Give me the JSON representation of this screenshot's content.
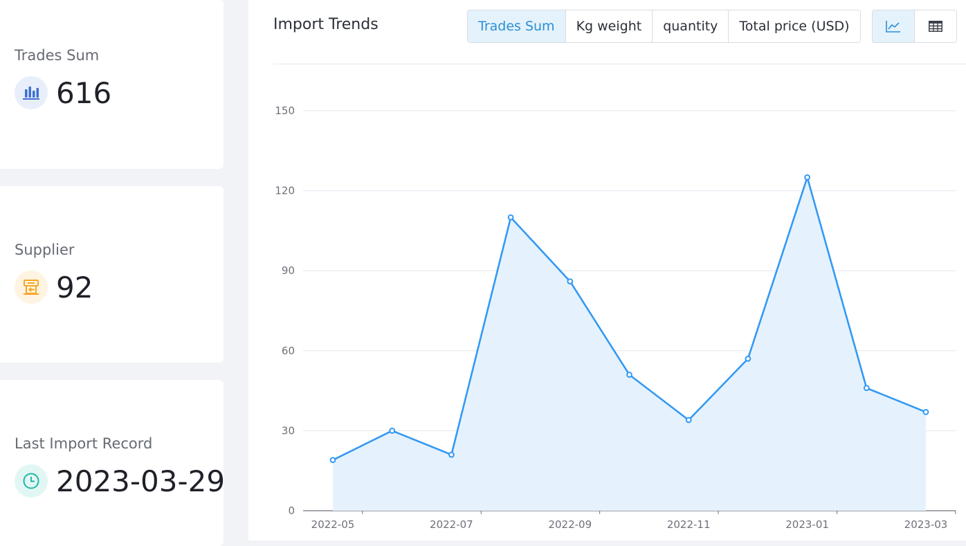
{
  "stats": [
    {
      "label": "Trades Sum",
      "value": "616",
      "icon": "bar-chart-icon",
      "color": "#3f6fd1"
    },
    {
      "label": "Supplier",
      "value": "92",
      "icon": "supplier-icon",
      "color": "#f5a623"
    },
    {
      "label": "Last Import Record",
      "value": "2023-03-29",
      "icon": "clock-icon",
      "color": "#1fb8a8"
    }
  ],
  "panel": {
    "title": "Import Trends",
    "tabs": [
      "Trades Sum",
      "Kg weight",
      "quantity",
      "Total price (USD)"
    ],
    "active_tab": "Trades Sum",
    "view_buttons": [
      "line-chart-icon",
      "table-icon"
    ],
    "active_view": "line-chart-icon"
  },
  "colors": {
    "accent": "#2a8fd6",
    "line": "#3399f3",
    "area": "#e4f1fd"
  },
  "chart_data": {
    "type": "area",
    "title": "",
    "xlabel": "",
    "ylabel": "",
    "x": [
      "2022-05",
      "2022-06",
      "2022-07",
      "2022-08",
      "2022-09",
      "2022-10",
      "2022-11",
      "2022-12",
      "2023-01",
      "2023-02",
      "2023-03"
    ],
    "x_tick_labels": [
      "2022-05",
      "2022-07",
      "2022-09",
      "2022-11",
      "2023-01",
      "2023-03"
    ],
    "series": [
      {
        "values": [
          19,
          30,
          21,
          110,
          86,
          51,
          34,
          57,
          125,
          46,
          37
        ]
      }
    ],
    "y_ticks": [
      0,
      30,
      60,
      90,
      120,
      150
    ],
    "ylim": [
      0,
      150
    ],
    "grid": true,
    "legend": "none"
  }
}
